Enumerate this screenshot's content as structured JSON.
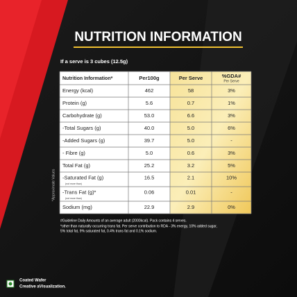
{
  "header": {
    "title": "NUTRITION INFORMATION",
    "serve_note": "If a serve is 3 cubes (12.5g)"
  },
  "table": {
    "columns": [
      "Nutrition Information*",
      "Per100g",
      "Per Serve",
      "%GDA#"
    ],
    "gda_sub": "Per Serve",
    "rows": [
      {
        "nutrient": "Energy (kcal)",
        "per100g": "462",
        "per_serve": "58",
        "gda": "3%"
      },
      {
        "nutrient": "Protein (g)",
        "per100g": "5.6",
        "per_serve": "0.7",
        "gda": "1%"
      },
      {
        "nutrient": "Carbohydrate (g)",
        "per100g": "53.0",
        "per_serve": "6.6",
        "gda": "3%"
      },
      {
        "nutrient": "-Total Sugars (g)",
        "per100g": "40.0",
        "per_serve": "5.0",
        "gda": "6%"
      },
      {
        "nutrient": "-Added Sugars (g)",
        "per100g": "39.7",
        "per_serve": "5.0",
        "gda": "-"
      },
      {
        "nutrient": "- Fibre (g)",
        "per100g": "5.0",
        "per_serve": "0.6",
        "gda": "3%"
      },
      {
        "nutrient": "Total Fat (g)",
        "per100g": "25.2",
        "per_serve": "3.2",
        "gda": "5%"
      },
      {
        "nutrient": "-Saturated Fat (g)",
        "note": "(not more than)",
        "per100g": "16.5",
        "per_serve": "2.1",
        "gda": "10%"
      },
      {
        "nutrient": "-Trans Fat (g)*",
        "note": "(not more than)",
        "per100g": "0.06",
        "per_serve": "0.01",
        "gda": "-"
      },
      {
        "nutrient": "Sodium (mg)",
        "per100g": "22.9",
        "per_serve": "2.9",
        "gda": "0%"
      }
    ],
    "side_note": "*Approximate Values"
  },
  "footnotes": [
    "#Guideline Daily Amounts of an average adult (2000kcal). Pack contains 4 serves.",
    "*other than naturally occurring trans fat. Per serve contribution to RDA - 3% energy, 10% added sugar,",
    "5% total fat,  9% saturated fat, 0.4% trans fat and 0.1% sodium."
  ],
  "footer": {
    "line1": "Coated Wafer",
    "line2": "Creative aVisualization."
  }
}
